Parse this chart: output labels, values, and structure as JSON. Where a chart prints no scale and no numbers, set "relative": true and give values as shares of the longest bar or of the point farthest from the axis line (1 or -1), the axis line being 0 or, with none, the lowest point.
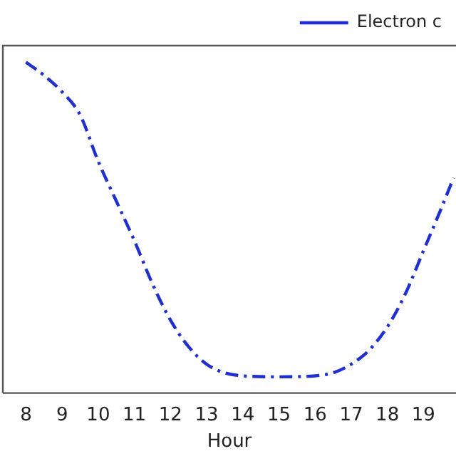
{
  "chart_data": {
    "type": "line",
    "xlabel": "Hour",
    "relative": true,
    "x": [
      8,
      8.5,
      9,
      9.5,
      10,
      10.5,
      11,
      11.5,
      12,
      12.5,
      13,
      13.5,
      14,
      15,
      16,
      16.5,
      17,
      17.5,
      18,
      18.5,
      19,
      19.5,
      19.83
    ],
    "series": [
      {
        "name": "Electron c",
        "color": "#1f2fd0",
        "values": [
          1,
          0.96,
          0.91,
          0.84,
          0.7,
          0.58,
          0.46,
          0.33,
          0.22,
          0.14,
          0.087,
          0.061,
          0.052,
          0.049,
          0.052,
          0.061,
          0.087,
          0.13,
          0.2,
          0.3,
          0.43,
          0.56,
          0.65
        ]
      }
    ],
    "xlim": [
      7.36,
      19.9
    ],
    "xticks": [
      8,
      9,
      10,
      11,
      12,
      13,
      14,
      15,
      16,
      17,
      18,
      19
    ],
    "grid": false,
    "legend": "top right",
    "marker": "none",
    "line_style": "dashed"
  }
}
